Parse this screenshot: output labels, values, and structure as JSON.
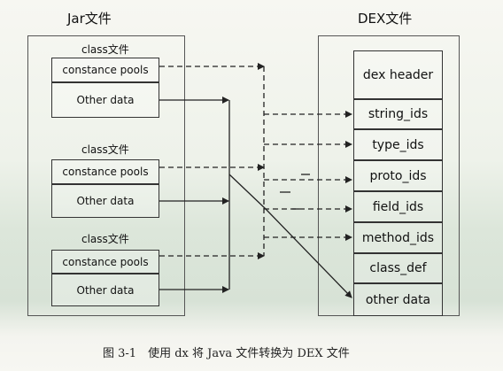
{
  "jar": {
    "title": "Jar文件",
    "classes": [
      {
        "label": "class文件",
        "rows": [
          "constance pools",
          "Other data"
        ]
      },
      {
        "label": "class文件",
        "rows": [
          "constance pools",
          "Other data"
        ]
      },
      {
        "label": "class文件",
        "rows": [
          "constance pools",
          "Other data"
        ]
      }
    ]
  },
  "dex": {
    "title": "DEX文件",
    "sections": [
      "dex header",
      "string_ids",
      "type_ids",
      "proto_ids",
      "field_ids",
      "method_ids",
      "class_def",
      "other data"
    ]
  },
  "caption": "图 3-1　使用 dx 将 Java 文件转换为 DEX 文件"
}
